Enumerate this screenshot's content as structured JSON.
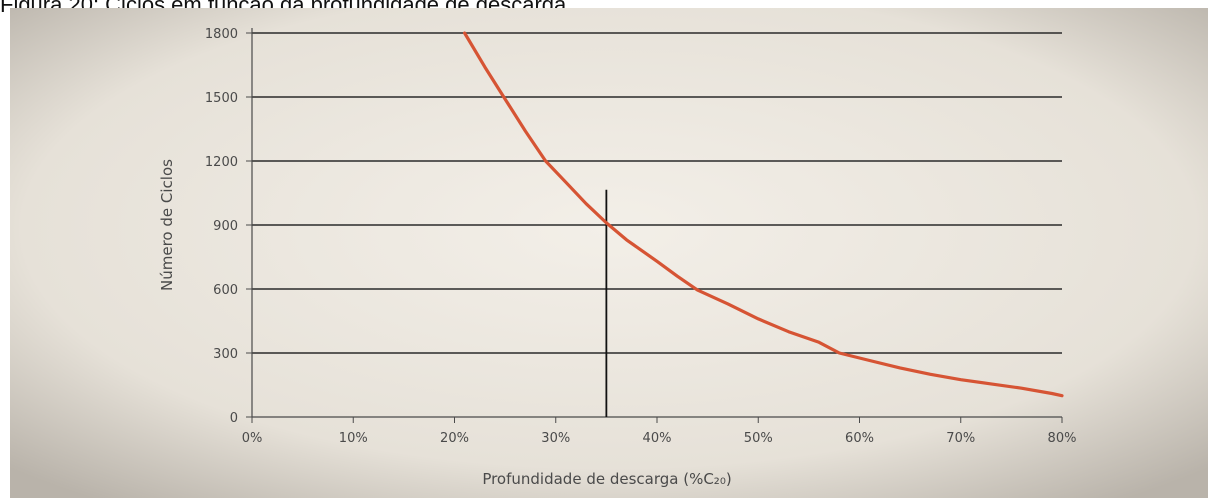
{
  "caption": "Figura 20: Ciclos em função da profundidade de descarga",
  "chart_data": {
    "type": "line",
    "title": "",
    "xlabel": "Profundidade de descarga (%C₂₀)",
    "ylabel": "Número de Ciclos",
    "xlim": [
      0,
      80
    ],
    "ylim": [
      0,
      1800
    ],
    "x_unit": "%",
    "x_ticks": [
      0,
      10,
      20,
      30,
      40,
      50,
      60,
      70,
      80
    ],
    "x_tick_labels": [
      "0%",
      "10%",
      "20%",
      "30%",
      "40%",
      "50%",
      "60%",
      "70%",
      "80%"
    ],
    "y_ticks": [
      0,
      300,
      600,
      900,
      1200,
      1500,
      1800
    ],
    "y_tick_labels": [
      "0",
      "300",
      "600",
      "900",
      "1200",
      "1500",
      "1800"
    ],
    "grid": "horizontal",
    "legend": "none",
    "series": [
      {
        "x": [
          21,
          23,
          25,
          27,
          29,
          31,
          33,
          35,
          37,
          40,
          42,
          44,
          47,
          50,
          53,
          56,
          58,
          61,
          64,
          67,
          70,
          73,
          76,
          79,
          80
        ],
        "y": [
          1800,
          1640,
          1490,
          1340,
          1200,
          1100,
          1000,
          910,
          830,
          730,
          660,
          595,
          530,
          460,
          400,
          350,
          300,
          265,
          230,
          200,
          175,
          155,
          135,
          110,
          100
        ],
        "color": "#d65434"
      }
    ],
    "annotations": [
      {
        "type": "vertical_line",
        "x": 35,
        "y_top": 1065,
        "color": "#111111"
      }
    ],
    "colors": {
      "background": "#ece8e0",
      "curve": "#d65434",
      "gridline": "#2a2a2a",
      "text": "#4a4a4a"
    }
  }
}
